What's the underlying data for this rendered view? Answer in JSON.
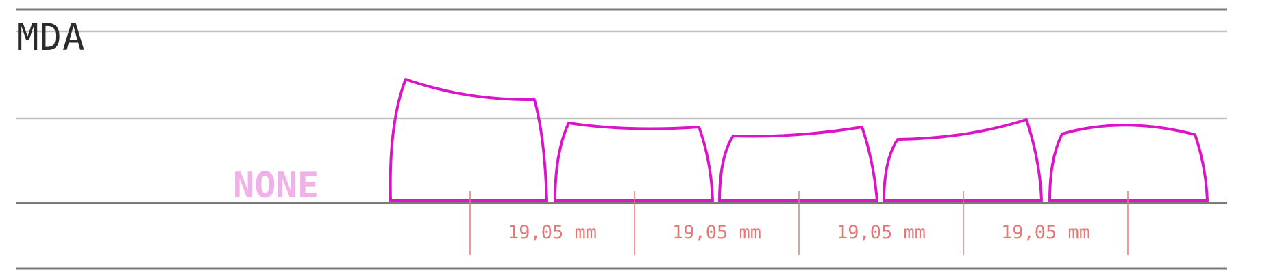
{
  "profile": {
    "name": "MDA",
    "sculpt_label": "NONE"
  },
  "spacing": {
    "labels": [
      "19,05 mm",
      "19,05 mm",
      "19,05 mm",
      "19,05 mm"
    ]
  },
  "keycaps": {
    "count": 5,
    "shapes": [
      "keycap-row-1",
      "keycap-row-2",
      "keycap-row-3",
      "keycap-row-4",
      "keycap-row-5"
    ]
  },
  "colors": {
    "keycap_outline": "#dc14c8",
    "sculpt_label": "#f0b0e8",
    "dimension": "#e87878",
    "frame_line": "#7a7a7a",
    "guide_line": "#c0c0c0",
    "title_text": "#2b2b2b"
  }
}
